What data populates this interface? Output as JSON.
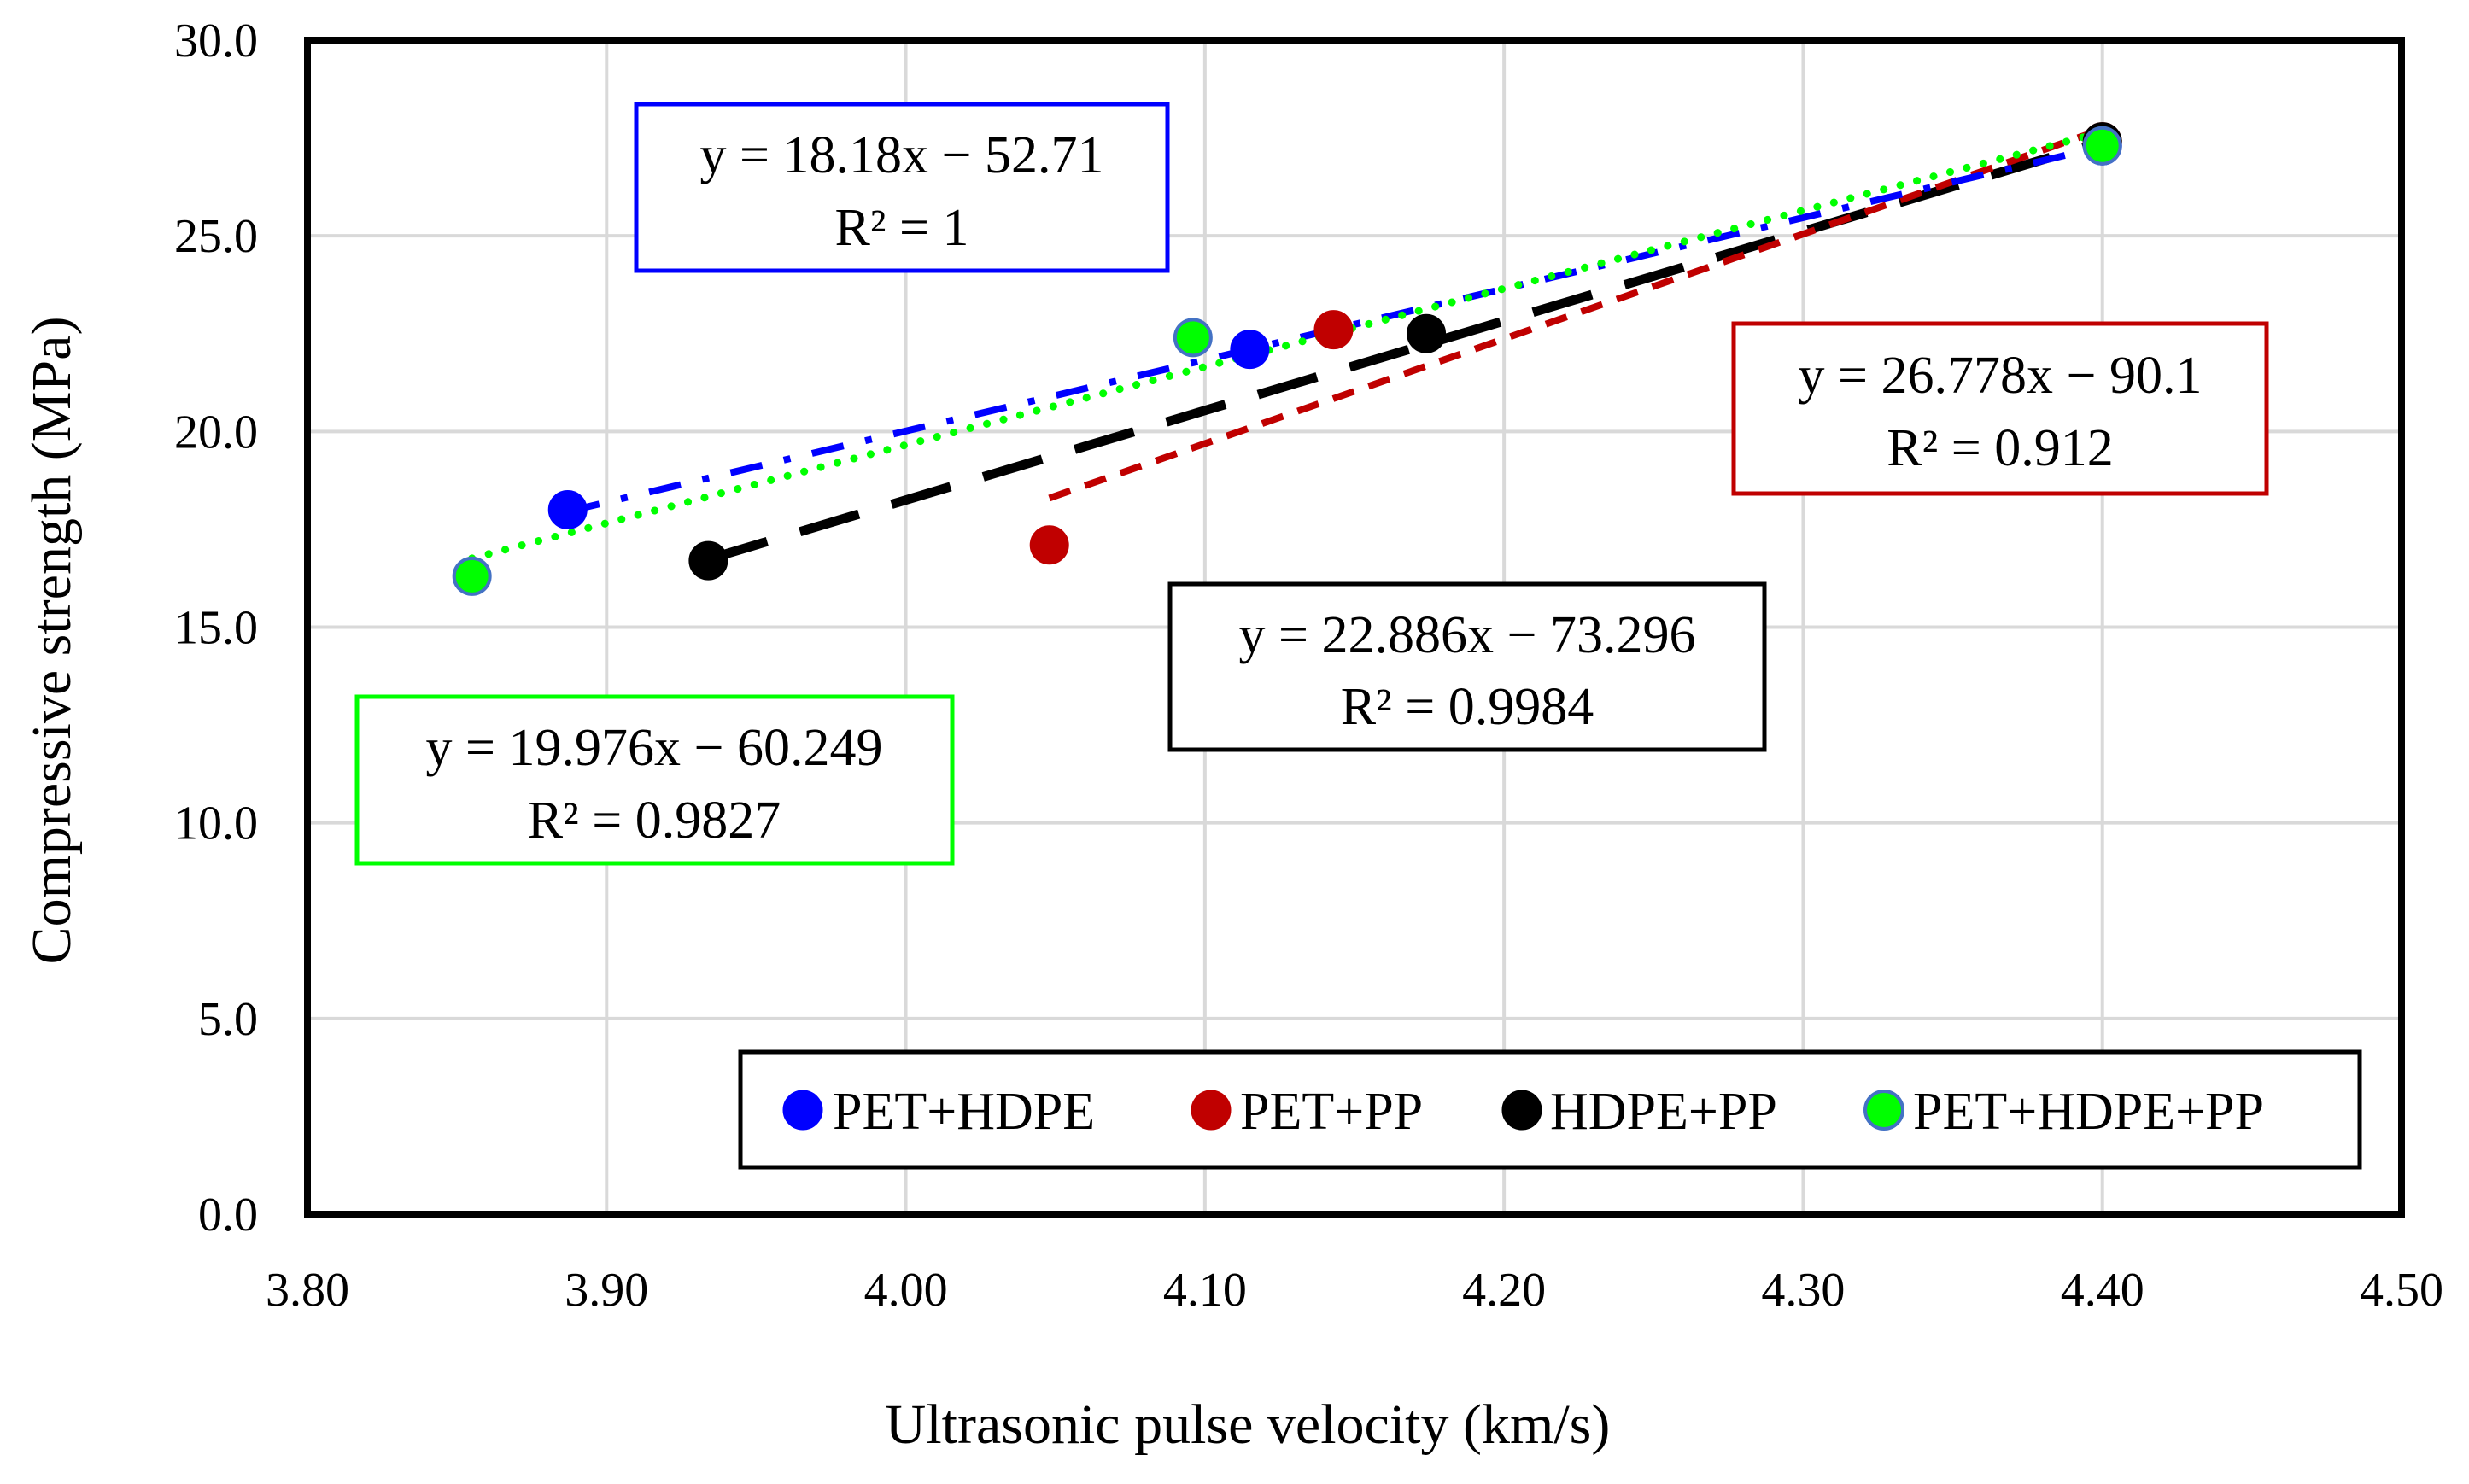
{
  "chart_data": {
    "type": "scatter",
    "xlabel": "Ultrasonic pulse velocity (km/s)",
    "ylabel": "Compressive strength (MPa)",
    "xlim": [
      3.8,
      4.5
    ],
    "ylim": [
      0,
      30
    ],
    "x_ticks": [
      "3.80",
      "3.90",
      "4.00",
      "4.10",
      "4.20",
      "4.30",
      "4.40",
      "4.50"
    ],
    "y_ticks": [
      "0.0",
      "5.0",
      "10.0",
      "15.0",
      "20.0",
      "25.0",
      "30.0"
    ],
    "grid": true,
    "legend_position": "bottom-right",
    "series": [
      {
        "name": "PET+HDPE",
        "color": "#0000ff",
        "marker_edge": "#0000ff",
        "points": [
          [
            3.887,
            18.0
          ],
          [
            4.115,
            22.1
          ],
          [
            4.4,
            27.3
          ]
        ],
        "trendline": {
          "slope": 18.18,
          "intercept": -52.71,
          "x_range": [
            3.887,
            4.4
          ],
          "style": "dash-dot"
        },
        "equation": "y = 18.18x − 52.71",
        "r2": "R² = 1",
        "box_color": "#0000ff"
      },
      {
        "name": "PET+PP",
        "color": "#c00000",
        "marker_edge": "#c00000",
        "points": [
          [
            4.048,
            17.1
          ],
          [
            4.143,
            22.6
          ],
          [
            4.4,
            27.4
          ]
        ],
        "trendline": {
          "slope": 26.778,
          "intercept": -90.1,
          "x_range": [
            4.048,
            4.4
          ],
          "style": "short-dash"
        },
        "equation": "y = 26.778x − 90.1",
        "r2": "R² = 0.912",
        "box_color": "#c00000"
      },
      {
        "name": "HDPE+PP",
        "color": "#000000",
        "marker_edge": "#000000",
        "points": [
          [
            3.934,
            16.7
          ],
          [
            4.174,
            22.5
          ],
          [
            4.4,
            27.4
          ]
        ],
        "trendline": {
          "slope": 22.886,
          "intercept": -73.296,
          "x_range": [
            3.934,
            4.4
          ],
          "style": "long-dash"
        },
        "equation": "y = 22.886x − 73.296",
        "r2": "R² = 0.9984",
        "box_color": "#000000"
      },
      {
        "name": "PET+HDPE+PP",
        "color": "#00ff00",
        "marker_edge": "#4472c4",
        "points": [
          [
            3.855,
            16.3
          ],
          [
            4.096,
            22.4
          ],
          [
            4.4,
            27.3
          ]
        ],
        "trendline": {
          "slope": 19.976,
          "intercept": -60.249,
          "x_range": [
            3.855,
            4.4
          ],
          "style": "dotted"
        },
        "equation": "y = 19.976x − 60.249",
        "r2": "R² = 0.9827",
        "box_color": "#00ff00"
      }
    ]
  }
}
